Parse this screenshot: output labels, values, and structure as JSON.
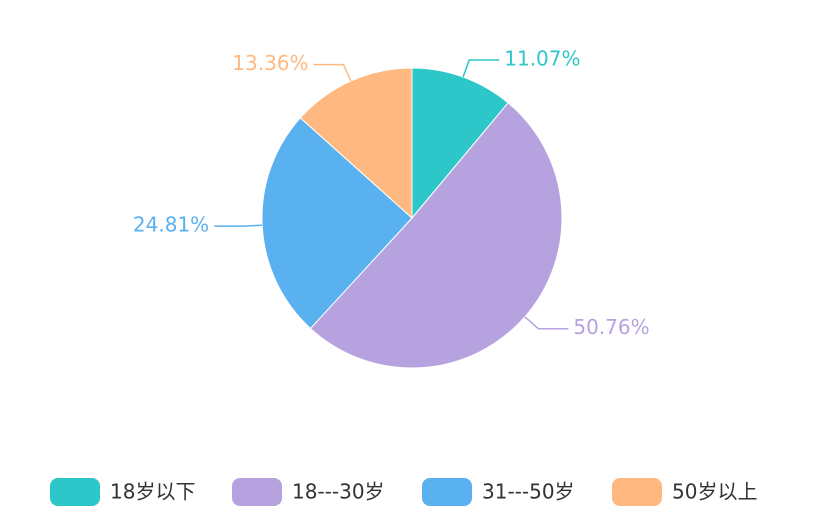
{
  "chart_data": {
    "type": "pie",
    "categories": [
      "18岁以下",
      "18---30岁",
      "31---50岁",
      "50岁以上"
    ],
    "values": [
      11.07,
      50.76,
      24.81,
      13.36
    ],
    "value_labels": [
      "11.07%",
      "50.76%",
      "24.81%",
      "13.36%"
    ],
    "colors": [
      "#2ec7c9",
      "#b6a2de",
      "#5ab1ef",
      "#ffb980"
    ]
  }
}
